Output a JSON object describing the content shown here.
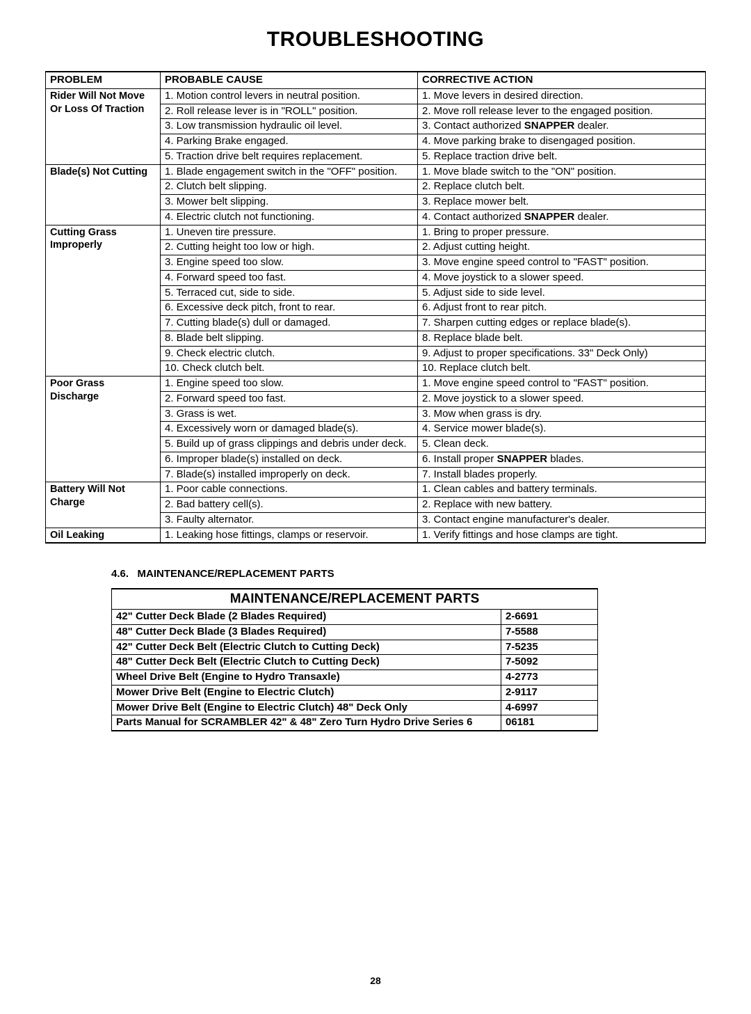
{
  "title": "TROUBLESHOOTING",
  "headers": {
    "problem": "PROBLEM",
    "cause": "PROBABLE CAUSE",
    "action": "CORRECTIVE ACTION"
  },
  "rows": [
    {
      "problem": "Rider Will Not Move Or Loss Of Traction",
      "items": [
        {
          "cause": "1. Motion control levers in neutral position.",
          "action": "1. Move levers in desired direction."
        },
        {
          "cause": "2. Roll release lever is in \"ROLL\" position.",
          "action": "2. Move roll release lever to the engaged position."
        },
        {
          "cause": "3. Low transmission hydraulic oil level.",
          "action_html": "3. Contact authorized <span class='snapper-strong'>SNAPPER</span> dealer."
        },
        {
          "cause": "4. Parking Brake engaged.",
          "action": "4. Move parking brake to disengaged position."
        },
        {
          "cause": "5. Traction drive belt requires replacement.",
          "action": "5. Replace traction drive belt."
        }
      ]
    },
    {
      "problem": "Blade(s) Not Cutting",
      "items": [
        {
          "cause": "1. Blade engagement switch in the \"OFF\" position.",
          "action": "1. Move blade switch to the \"ON\" position."
        },
        {
          "cause": "2. Clutch belt slipping.",
          "action": "2. Replace clutch belt."
        },
        {
          "cause": "3. Mower belt slipping.",
          "action": "3. Replace mower belt."
        },
        {
          "cause": "4. Electric clutch not functioning.",
          "action_html": "4. Contact authorized <span class='snapper-strong'>SNAPPER</span> dealer."
        }
      ]
    },
    {
      "problem": "Cutting Grass Improperly",
      "items": [
        {
          "cause": "1. Uneven tire pressure.",
          "action": "1. Bring to proper pressure."
        },
        {
          "cause": "2. Cutting height too low or high.",
          "action": "2. Adjust cutting height."
        },
        {
          "cause": "3. Engine speed too slow.",
          "action": "3. Move engine speed control to \"FAST\" position."
        },
        {
          "cause": "4. Forward speed too fast.",
          "action": "4. Move joystick to a slower speed."
        },
        {
          "cause": "5. Terraced cut, side to side.",
          "action": "5. Adjust side to side level."
        },
        {
          "cause": "6. Excessive deck pitch, front to rear.",
          "action": "6. Adjust front to rear pitch."
        },
        {
          "cause": "7. Cutting blade(s) dull or damaged.",
          "action": "7. Sharpen cutting edges or replace blade(s)."
        },
        {
          "cause": "8. Blade belt slipping.",
          "action": "8. Replace blade belt."
        },
        {
          "cause": "9. Check electric clutch.",
          "action": "9. Adjust to proper specifications. 33\" Deck Only)"
        },
        {
          "cause": "10. Check clutch belt.",
          "action": "10. Replace clutch belt."
        }
      ]
    },
    {
      "problem": "Poor Grass Discharge",
      "items": [
        {
          "cause": "1. Engine speed too slow.",
          "action": "1. Move engine speed control to \"FAST\" position."
        },
        {
          "cause": "2. Forward speed too fast.",
          "action": "2. Move joystick to a slower speed."
        },
        {
          "cause": "3. Grass is wet.",
          "action": "3. Mow when grass is dry."
        },
        {
          "cause": "4. Excessively worn or damaged blade(s).",
          "action": "4. Service mower blade(s)."
        },
        {
          "cause": "5. Build up of grass clippings and debris under deck.",
          "action": "5. Clean deck."
        },
        {
          "cause": "6. Improper blade(s) installed on deck.",
          "action_html": "6. Install proper <span class='snapper-strong'>SNAPPER</span> blades."
        },
        {
          "cause": "7. Blade(s) installed improperly on deck.",
          "action": "7. Install blades properly."
        }
      ]
    },
    {
      "problem": "Battery Will Not Charge",
      "items": [
        {
          "cause": "1. Poor cable connections.",
          "action": "1. Clean cables and battery terminals."
        },
        {
          "cause": "2. Bad battery cell(s).",
          "action": "2. Replace with new battery."
        },
        {
          "cause": "3. Faulty alternator.",
          "action": "3. Contact engine manufacturer's dealer."
        }
      ]
    },
    {
      "problem": "Oil Leaking",
      "items": [
        {
          "cause": "1. Leaking hose fittings, clamps or reservoir.",
          "action": "1. Verify fittings and hose clamps are tight."
        }
      ]
    }
  ],
  "section": {
    "number": "4.6.",
    "label": "MAINTENANCE/REPLACEMENT PARTS"
  },
  "parts_title": "MAINTENANCE/REPLACEMENT PARTS",
  "parts": [
    {
      "desc": "42\" Cutter Deck Blade (2 Blades Required)",
      "num": "2-6691"
    },
    {
      "desc": "48\" Cutter Deck Blade (3 Blades Required)",
      "num": "7-5588"
    },
    {
      "desc": "42\" Cutter Deck Belt (Electric Clutch to Cutting Deck)",
      "num": "7-5235"
    },
    {
      "desc": "48\" Cutter Deck Belt (Electric Clutch to Cutting Deck)",
      "num": "7-5092"
    },
    {
      "desc": "Wheel Drive Belt (Engine to Hydro Transaxle)",
      "num": "4-2773"
    },
    {
      "desc": "Mower Drive Belt (Engine to Electric Clutch)",
      "num": "2-9117"
    },
    {
      "desc": "Mower Drive Belt (Engine to Electric Clutch)   48\" Deck Only",
      "num": "4-6997"
    },
    {
      "desc": "Parts Manual for SCRAMBLER 42\" & 48\" Zero Turn Hydro Drive Series 6",
      "num": "06181"
    }
  ],
  "page_number": "28",
  "col_widths": {
    "problem": "165px",
    "cause": "370px",
    "action": "auto"
  }
}
